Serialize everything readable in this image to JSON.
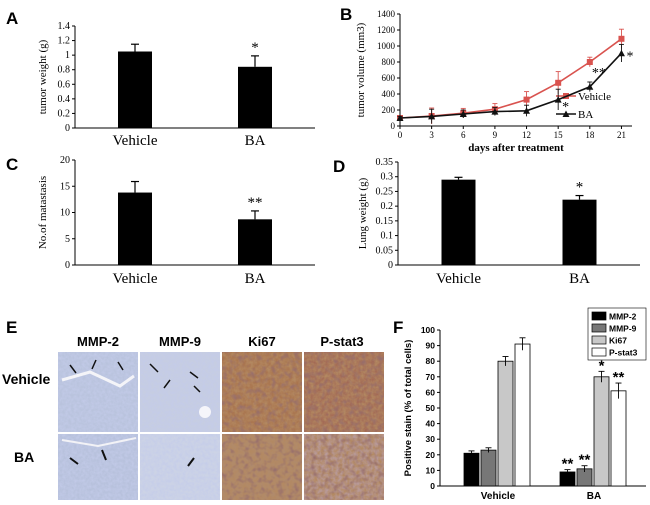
{
  "panels": {
    "A": {
      "label": "A",
      "chart_data": {
        "type": "bar",
        "categories": [
          "Vehicle",
          "BA"
        ],
        "values": [
          1.05,
          0.84
        ],
        "errors": [
          0.1,
          0.15
        ],
        "ylabel": "tumor weight (g)",
        "ylim": [
          0,
          1.4
        ],
        "yticks": [
          "0",
          "0.2",
          "0.4",
          "0.6",
          "0.8",
          "1",
          "1.2",
          "1.4"
        ],
        "annotations": [
          "",
          "*"
        ]
      }
    },
    "B": {
      "label": "B",
      "chart_data": {
        "type": "line",
        "xlabel": "days after treatment",
        "ylabel": "tumor volume (mm3)",
        "ylim": [
          0,
          1400
        ],
        "xlim": [
          0,
          22
        ],
        "x": [
          0,
          3,
          6,
          9,
          12,
          15,
          18,
          21
        ],
        "xticks": [
          "0",
          "3",
          "6",
          "9",
          "12",
          "15",
          "18",
          "21"
        ],
        "yticks": [
          "0",
          "200",
          "400",
          "600",
          "800",
          "1000",
          "1200",
          "1400"
        ],
        "series": [
          {
            "name": "Vehicle",
            "values": [
              100,
              125,
              160,
              210,
              330,
              540,
              800,
              1090
            ],
            "errors": [
              20,
              100,
              60,
              70,
              100,
              140,
              60,
              120
            ],
            "color": "#d9534f"
          },
          {
            "name": "BA",
            "values": [
              100,
              120,
              150,
              180,
              190,
              330,
              490,
              910
            ],
            "errors": [
              20,
              90,
              50,
              50,
              70,
              130,
              60,
              110
            ],
            "color": "#111111"
          }
        ],
        "annotations": [
          "*",
          "**",
          "*"
        ]
      }
    },
    "C": {
      "label": "C",
      "chart_data": {
        "type": "bar",
        "categories": [
          "Vehicle",
          "BA"
        ],
        "values": [
          13.8,
          8.7
        ],
        "errors": [
          2.1,
          1.6
        ],
        "ylabel": "No.of matastasis",
        "ylim": [
          0,
          20
        ],
        "yticks": [
          "0",
          "5",
          "10",
          "15",
          "20"
        ],
        "annotations": [
          "",
          "**"
        ]
      }
    },
    "D": {
      "label": "D",
      "chart_data": {
        "type": "bar",
        "categories": [
          "Vehicle",
          "BA"
        ],
        "values": [
          0.29,
          0.222
        ],
        "errors": [
          0.008,
          0.014
        ],
        "ylabel": "Lung weight (g)",
        "ylim": [
          0,
          0.35
        ],
        "yticks": [
          "0",
          "0.05",
          "0.1",
          "0.15",
          "0.2",
          "0.25",
          "0.3",
          "0.35"
        ],
        "annotations": [
          "",
          "*"
        ]
      }
    },
    "E": {
      "label": "E",
      "columns": [
        "MMP-2",
        "MMP-9",
        "Ki67",
        "P-stat3"
      ],
      "rows": [
        "Vehicle",
        "BA"
      ]
    },
    "F": {
      "label": "F",
      "chart_data": {
        "type": "bar",
        "categories": [
          "Vehicle",
          "BA"
        ],
        "ylabel": "Positive stain (% of total cells)",
        "ylim": [
          0,
          100
        ],
        "yticks": [
          "0",
          "10",
          "20",
          "30",
          "40",
          "50",
          "60",
          "70",
          "80",
          "90",
          "100"
        ],
        "series": [
          {
            "name": "MMP-2",
            "values": [
              21,
              9
            ],
            "errors": [
              1.5,
              1.5
            ],
            "color": "#000000"
          },
          {
            "name": "MMP-9",
            "values": [
              23,
              11
            ],
            "errors": [
              1.5,
              2
            ],
            "color": "#777777"
          },
          {
            "name": "Ki67",
            "values": [
              80,
              70
            ],
            "errors": [
              3,
              3.5
            ],
            "color": "#c8c8c8"
          },
          {
            "name": "P-stat3",
            "values": [
              91,
              61
            ],
            "errors": [
              4,
              5
            ],
            "color": "#ffffff"
          }
        ],
        "annotations": [
          [
            "",
            "",
            "",
            ""
          ],
          [
            "**",
            "**",
            "*",
            "**"
          ]
        ]
      }
    }
  }
}
